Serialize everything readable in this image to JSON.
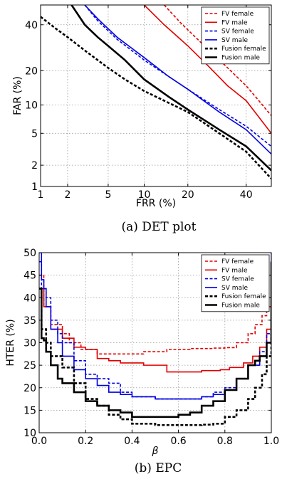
{
  "chart_data": [
    {
      "type": "line",
      "caption": "(a) DET plot",
      "xlabel": "FRR (%)",
      "ylabel": "FAR (%)",
      "xscale": "probit",
      "yscale": "probit",
      "xlim": [
        1,
        50
      ],
      "ylim": [
        1,
        50
      ],
      "xticks": [
        1,
        2,
        5,
        10,
        20,
        40
      ],
      "yticks": [
        1,
        2,
        5,
        10,
        20,
        40
      ],
      "grid": true,
      "legend_position": "top-right",
      "series": [
        {
          "name": "FV female",
          "color": "#e00000",
          "dash": "dashed",
          "x": [
            14,
            18,
            25,
            32,
            40,
            45,
            50
          ],
          "y": [
            50,
            41,
            30,
            22,
            15,
            11,
            7.8
          ]
        },
        {
          "name": "FV male",
          "color": "#e00000",
          "dash": "solid",
          "x": [
            10,
            14,
            20,
            26,
            33,
            40,
            50
          ],
          "y": [
            50,
            40,
            30,
            22,
            15,
            11,
            5
          ]
        },
        {
          "name": "SV female",
          "color": "#0000e0",
          "dash": "dashed",
          "x": [
            3,
            4,
            6,
            10,
            15,
            20,
            30,
            40,
            50
          ],
          "y": [
            50,
            42,
            33,
            24,
            18,
            14,
            9,
            6,
            3.5
          ]
        },
        {
          "name": "SV male",
          "color": "#0000e0",
          "dash": "solid",
          "x": [
            3,
            4,
            6,
            10,
            15,
            20,
            30,
            40,
            50
          ],
          "y": [
            50,
            43,
            34,
            25,
            18,
            14,
            8.5,
            5.5,
            2.8
          ]
        },
        {
          "name": "Fusion female",
          "color": "#000000",
          "dash": "dashed",
          "x": [
            1,
            1.5,
            2,
            3,
            5,
            7,
            10,
            15,
            20,
            30,
            40,
            50
          ],
          "y": [
            44,
            38,
            34,
            28,
            21,
            17,
            13.5,
            10.5,
            8.5,
            5,
            3,
            1.3
          ]
        },
        {
          "name": "Fusion male",
          "color": "#000000",
          "dash": "solid",
          "x": [
            2.2,
            3,
            4,
            5,
            7,
            10,
            15,
            20,
            30,
            40,
            50
          ],
          "y": [
            50,
            40,
            34,
            30,
            24,
            17,
            12,
            9,
            5.5,
            3.5,
            1.7
          ]
        }
      ]
    },
    {
      "type": "line",
      "caption": "(b) EPC",
      "xlabel": "β",
      "ylabel": "HTER (%)",
      "xlim": [
        0.0,
        1.0
      ],
      "ylim": [
        10,
        50
      ],
      "xticks": [
        0.0,
        0.2,
        0.4,
        0.6,
        0.8,
        1.0
      ],
      "xtick_labels": [
        "0.0",
        "0.2",
        "0.4",
        "0.6",
        "0.8",
        "1.0"
      ],
      "yticks": [
        10,
        15,
        20,
        25,
        30,
        35,
        40,
        45,
        50
      ],
      "grid": true,
      "legend_position": "top-right",
      "series": [
        {
          "name": "FV female",
          "color": "#e00000",
          "dash": "dashed",
          "x": [
            0.0,
            0.02,
            0.05,
            0.1,
            0.13,
            0.18,
            0.25,
            0.35,
            0.45,
            0.55,
            0.65,
            0.75,
            0.8,
            0.85,
            0.9,
            0.93,
            0.96,
            0.98,
            1.0
          ],
          "y": [
            45,
            38,
            34,
            32,
            30,
            28.5,
            27.5,
            27.5,
            28,
            28.5,
            28.7,
            28.8,
            28.9,
            30,
            32,
            34,
            36,
            38,
            40
          ]
        },
        {
          "name": "FV male",
          "color": "#e00000",
          "dash": "solid",
          "x": [
            0.0,
            0.02,
            0.05,
            0.1,
            0.15,
            0.2,
            0.25,
            0.3,
            0.35,
            0.45,
            0.55,
            0.6,
            0.7,
            0.78,
            0.82,
            0.88,
            0.92,
            0.95,
            0.98,
            1.0
          ],
          "y": [
            42,
            38,
            33,
            31,
            29,
            28.5,
            26.5,
            26,
            25.5,
            25,
            23.5,
            23.5,
            23.8,
            24,
            24.5,
            25.5,
            27,
            29,
            33,
            38
          ]
        },
        {
          "name": "SV female",
          "color": "#0000e0",
          "dash": "dashed",
          "x": [
            0.0,
            0.01,
            0.03,
            0.05,
            0.08,
            0.1,
            0.15,
            0.2,
            0.25,
            0.3,
            0.35,
            0.4,
            0.5,
            0.6,
            0.7,
            0.75,
            0.8,
            0.85,
            0.9,
            0.95,
            0.98,
            1.0
          ],
          "y": [
            48,
            42,
            40,
            35,
            32,
            30,
            26,
            23,
            22,
            21,
            19,
            18,
            17.5,
            17.5,
            18,
            19,
            20,
            22,
            25,
            28,
            32,
            40
          ]
        },
        {
          "name": "SV male",
          "color": "#0000e0",
          "dash": "solid",
          "x": [
            0.0,
            0.01,
            0.02,
            0.03,
            0.05,
            0.08,
            0.1,
            0.15,
            0.2,
            0.25,
            0.3,
            0.35,
            0.4,
            0.5,
            0.6,
            0.7,
            0.75,
            0.8,
            0.85,
            0.9,
            0.95,
            0.98,
            1.0
          ],
          "y": [
            50,
            44,
            42,
            38,
            33,
            30,
            27,
            24,
            22,
            20.5,
            19,
            18.5,
            18,
            17.5,
            17.5,
            18,
            18.5,
            19.5,
            22,
            25,
            27,
            30,
            50
          ]
        },
        {
          "name": "Fusion female",
          "color": "#000000",
          "dash": "dashed",
          "x": [
            0.0,
            0.01,
            0.03,
            0.05,
            0.1,
            0.15,
            0.2,
            0.25,
            0.3,
            0.35,
            0.4,
            0.5,
            0.6,
            0.7,
            0.75,
            0.8,
            0.85,
            0.9,
            0.93,
            0.96,
            0.98,
            1.0
          ],
          "y": [
            42,
            33,
            30,
            27,
            24.5,
            21,
            17.5,
            16,
            14,
            13,
            12,
            11.7,
            11.7,
            11.8,
            12,
            13.5,
            15,
            17.5,
            20,
            23,
            27,
            32
          ]
        },
        {
          "name": "Fusion male",
          "color": "#000000",
          "dash": "solid",
          "x": [
            0.0,
            0.01,
            0.02,
            0.03,
            0.05,
            0.08,
            0.1,
            0.15,
            0.2,
            0.25,
            0.3,
            0.35,
            0.4,
            0.5,
            0.6,
            0.65,
            0.7,
            0.75,
            0.8,
            0.85,
            0.9,
            0.93,
            0.95,
            0.98,
            1.0
          ],
          "y": [
            42,
            31,
            30.5,
            28,
            25,
            22,
            21,
            19,
            17,
            16,
            15,
            14.5,
            13.5,
            13.5,
            14,
            14.5,
            16,
            17,
            19.5,
            22,
            25,
            26,
            27,
            30,
            48
          ]
        }
      ]
    }
  ]
}
